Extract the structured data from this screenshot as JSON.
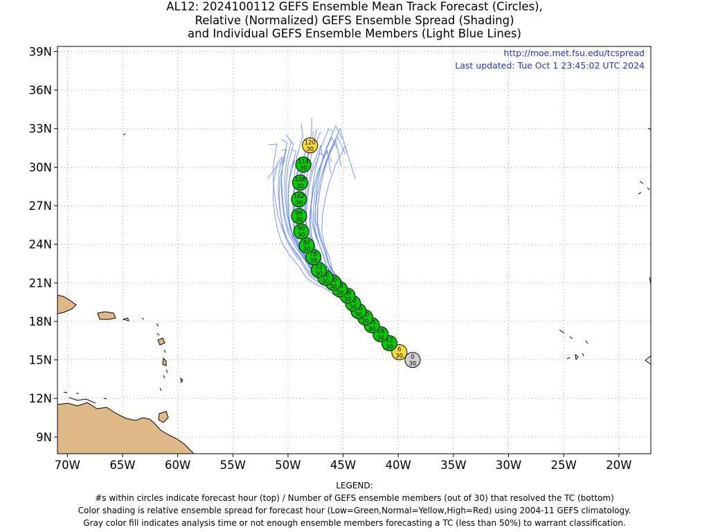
{
  "title": {
    "line1": "AL12: 2024100112 GEFS Ensemble Mean Track Forecast (Circles),",
    "line2": "Relative (Normalized) GEFS Ensemble Spread (Shading)",
    "line3": "and Individual GEFS Ensemble Members (Light Blue Lines)"
  },
  "header_info": {
    "url": "http://moe.met.fsu.edu/tcspread",
    "updated": "Last updated: Tue Oct 1 23:45:02 UTC 2024"
  },
  "axes": {
    "lat_ticks": [
      "39N",
      "36N",
      "33N",
      "30N",
      "27N",
      "24N",
      "21N",
      "18N",
      "15N",
      "12N",
      "9N"
    ],
    "lat_values": [
      39,
      36,
      33,
      30,
      27,
      24,
      21,
      18,
      15,
      12,
      9
    ],
    "lon_ticks": [
      "70W",
      "65W",
      "60W",
      "55W",
      "50W",
      "45W",
      "40W",
      "35W",
      "30W",
      "25W",
      "20W"
    ],
    "lon_values": [
      -70,
      -65,
      -60,
      -55,
      -50,
      -45,
      -40,
      -35,
      -30,
      -25,
      -20
    ],
    "lon_range": [
      -70.9,
      -17.1
    ],
    "lat_range": [
      7.7,
      39.4
    ],
    "grid": true
  },
  "colors": {
    "green": "#00cc00",
    "yellow": "#ffdd33",
    "gray": "#d0d0d0",
    "member_lines": "#6a8cff",
    "land": "#deb887",
    "header_text": "#2233cc"
  },
  "forecast_points": [
    {
      "hour": "0",
      "members": "30",
      "lat": 15.0,
      "lon": -38.7,
      "category": "gray"
    },
    {
      "hour": "6",
      "members": "30",
      "lat": 15.6,
      "lon": -39.9,
      "category": "yellow"
    },
    {
      "hour": "12",
      "members": "30",
      "lat": 16.3,
      "lon": -40.8,
      "category": "green"
    },
    {
      "hour": "18",
      "members": "30",
      "lat": 17.0,
      "lon": -41.6,
      "category": "green"
    },
    {
      "hour": "24",
      "members": "30",
      "lat": 17.7,
      "lon": -42.4,
      "category": "green"
    },
    {
      "hour": "30",
      "members": "30",
      "lat": 18.3,
      "lon": -43.0,
      "category": "green"
    },
    {
      "hour": "36",
      "members": "30",
      "lat": 18.8,
      "lon": -43.6,
      "category": "green"
    },
    {
      "hour": "42",
      "members": "30",
      "lat": 19.4,
      "lon": -44.1,
      "category": "green"
    },
    {
      "hour": "48",
      "members": "30",
      "lat": 20.0,
      "lon": -44.6,
      "category": "green"
    },
    {
      "hour": "54",
      "members": "30",
      "lat": 20.5,
      "lon": -45.3,
      "category": "green"
    },
    {
      "hour": "60",
      "members": "30",
      "lat": 21.0,
      "lon": -45.9,
      "category": "green"
    },
    {
      "hour": "66",
      "members": "30",
      "lat": 21.4,
      "lon": -46.6,
      "category": "green"
    },
    {
      "hour": "72",
      "members": "30",
      "lat": 22.0,
      "lon": -47.2,
      "category": "green"
    },
    {
      "hour": "78",
      "members": "30",
      "lat": 23.0,
      "lon": -47.7,
      "category": "green"
    },
    {
      "hour": "84",
      "members": "30",
      "lat": 23.9,
      "lon": -48.3,
      "category": "green"
    },
    {
      "hour": "90",
      "members": "30",
      "lat": 25.0,
      "lon": -48.8,
      "category": "green"
    },
    {
      "hour": "96",
      "members": "30",
      "lat": 26.2,
      "lon": -49.0,
      "category": "green"
    },
    {
      "hour": "102",
      "members": "30",
      "lat": 27.5,
      "lon": -49.0,
      "category": "green"
    },
    {
      "hour": "108",
      "members": "30",
      "lat": 28.8,
      "lon": -48.9,
      "category": "green"
    },
    {
      "hour": "114",
      "members": "30",
      "lat": 30.2,
      "lon": -48.6,
      "category": "green"
    },
    {
      "hour": "120",
      "members": "30",
      "lat": 31.7,
      "lon": -48.0,
      "category": "yellow"
    }
  ],
  "legend": {
    "heading": "LEGEND:",
    "line1": "#s within circles indicate forecast hour (top) / Number of GEFS ensemble members (out of 30) that resolved the TC (bottom)",
    "line2": "Color shading is relative ensemble spread for forecast hour (Low=Green,Normal=Yellow,High=Red) using 2004-11 GEFS climatology.",
    "line3": "Gray color fill indicates analysis time or not enough ensemble members forecasting a TC (less than 50%) to warrant classification."
  }
}
